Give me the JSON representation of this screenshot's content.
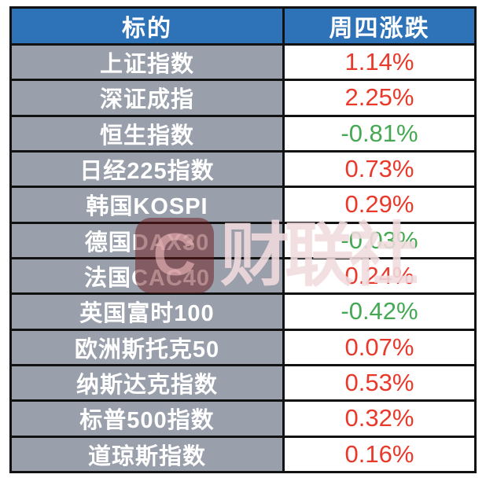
{
  "table": {
    "header": {
      "target": "标的",
      "change": "周四涨跌"
    },
    "rows": [
      {
        "name": "上证指数",
        "change": "1.14%",
        "direction": "up"
      },
      {
        "name": "深证成指",
        "change": "2.25%",
        "direction": "up"
      },
      {
        "name": "恒生指数",
        "change": "-0.81%",
        "direction": "down"
      },
      {
        "name": "日经225指数",
        "change": "0.73%",
        "direction": "up"
      },
      {
        "name": "韩国KOSPI",
        "change": "0.29%",
        "direction": "up"
      },
      {
        "name": "德国DAX30",
        "change": "-0.03%",
        "direction": "down"
      },
      {
        "name": "法国CAC40",
        "change": "0.24%",
        "direction": "up"
      },
      {
        "name": "英国富时100",
        "change": "-0.42%",
        "direction": "down"
      },
      {
        "name": "欧洲斯托克50",
        "change": "0.07%",
        "direction": "up"
      },
      {
        "name": "纳斯达克指数",
        "change": "0.53%",
        "direction": "up"
      },
      {
        "name": "标普500指数",
        "change": "0.32%",
        "direction": "up"
      },
      {
        "name": "道琼斯指数",
        "change": "0.16%",
        "direction": "up"
      }
    ]
  },
  "watermark": {
    "text": "财联社",
    "logo_letter": "C"
  },
  "colors": {
    "header_bg": "#2E73B7",
    "header_text": "#FFFFFF",
    "label_bg": "#9AA0AB",
    "label_text": "#FFFFFF",
    "value_bg": "#FFFFFF",
    "up_red": "#E8392B",
    "down_green": "#45A853",
    "grid": "#121212",
    "page_bg": "#FFFFFF"
  },
  "chart_data": {
    "type": "table",
    "title": "",
    "columns": [
      "标的",
      "周四涨跌"
    ],
    "rows": [
      [
        "上证指数",
        "1.14%"
      ],
      [
        "深证成指",
        "2.25%"
      ],
      [
        "恒生指数",
        "-0.81%"
      ],
      [
        "日经225指数",
        "0.73%"
      ],
      [
        "韩国KOSPI",
        "0.29%"
      ],
      [
        "德国DAX30",
        "-0.03%"
      ],
      [
        "法国CAC40",
        "0.24%"
      ],
      [
        "英国富时100",
        "-0.42%"
      ],
      [
        "欧洲斯托克50",
        "0.07%"
      ],
      [
        "纳斯达克指数",
        "0.53%"
      ],
      [
        "标普500指数",
        "0.32%"
      ],
      [
        "道琼斯指数",
        "0.16%"
      ]
    ],
    "numeric_changes_pct": [
      1.14,
      2.25,
      -0.81,
      0.73,
      0.29,
      -0.03,
      0.24,
      -0.42,
      0.07,
      0.53,
      0.32,
      0.16
    ],
    "color_convention": "red = positive change, green = negative change"
  }
}
